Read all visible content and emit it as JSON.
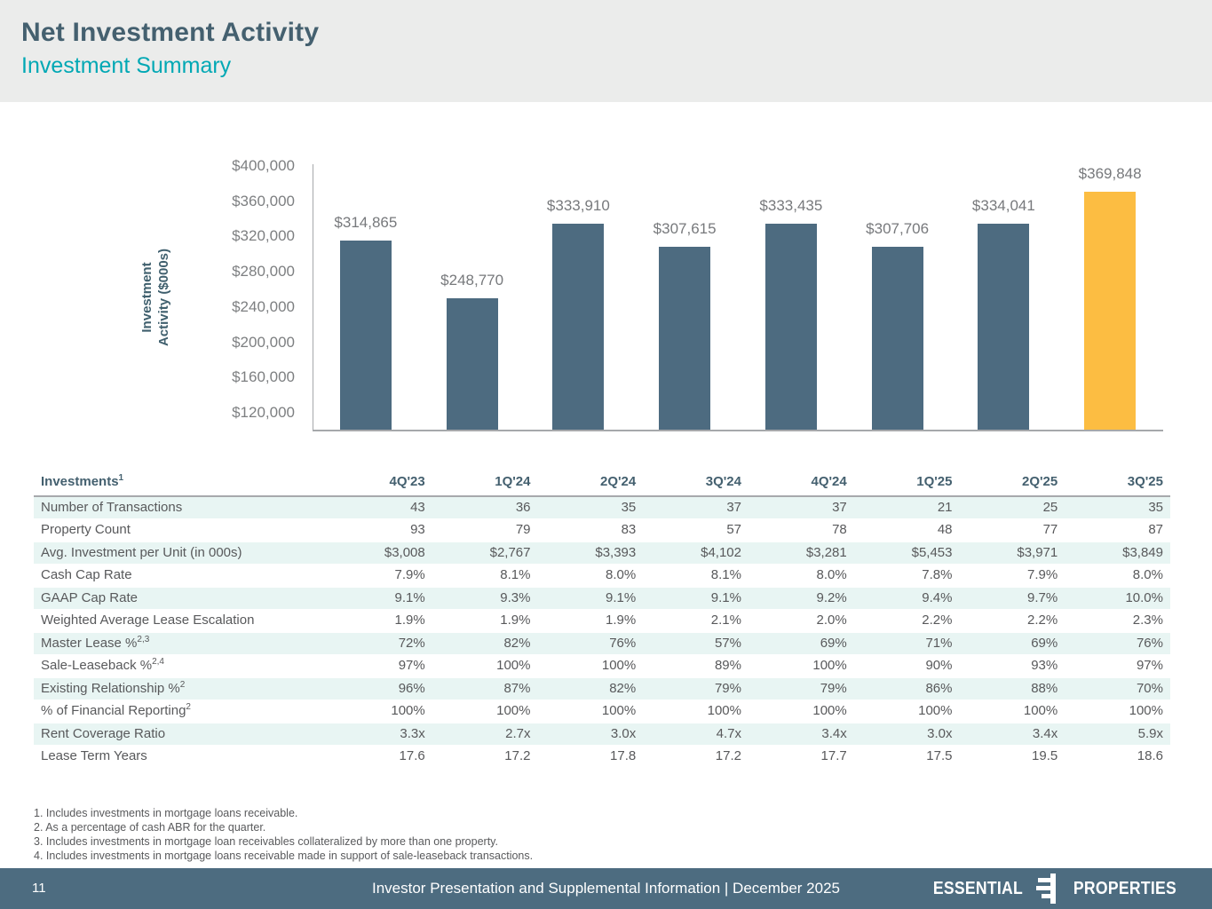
{
  "header": {
    "title": "Net Investment Activity",
    "subtitle": "Investment Summary"
  },
  "chart_data": {
    "type": "bar",
    "title": "",
    "categories": [
      "4Q'23",
      "1Q'24",
      "2Q'24",
      "3Q'24",
      "4Q'24",
      "1Q'25",
      "2Q'25",
      "3Q'25"
    ],
    "values": [
      314865,
      248770,
      333910,
      307615,
      333435,
      307706,
      334041,
      369848
    ],
    "value_labels": [
      "$314,865",
      "$248,770",
      "$333,910",
      "$307,615",
      "$333,435",
      "$307,706",
      "$334,041",
      "$369,848"
    ],
    "ylabel_lines": [
      "Investment",
      "Activity ($000s)"
    ],
    "ylabel": "Investment Activity ($000s)",
    "yticks": [
      "$400,000",
      "$360,000",
      "$320,000",
      "$280,000",
      "$240,000",
      "$200,000",
      "$160,000",
      "$120,000"
    ],
    "ylim": [
      100000,
      400000
    ],
    "grid": false,
    "legend": "none",
    "bar_color": "#4d6b80",
    "highlight_color": "#fcbd42",
    "highlight_index": 7
  },
  "table": {
    "title": {
      "label": "Investments",
      "sup": "1"
    },
    "columns": [
      "4Q'23",
      "1Q'24",
      "2Q'24",
      "3Q'24",
      "4Q'24",
      "1Q'25",
      "2Q'25",
      "3Q'25"
    ],
    "rows": [
      {
        "label": "Number of Transactions",
        "values": [
          "43",
          "36",
          "35",
          "37",
          "37",
          "21",
          "25",
          "35"
        ]
      },
      {
        "label": "Property Count",
        "values": [
          "93",
          "79",
          "83",
          "57",
          "78",
          "48",
          "77",
          "87"
        ]
      },
      {
        "label": "Avg. Investment per Unit (in 000s)",
        "values": [
          "$3,008",
          "$2,767",
          "$3,393",
          "$4,102",
          "$3,281",
          "$5,453",
          "$3,971",
          "$3,849"
        ]
      },
      {
        "label": "Cash Cap Rate",
        "values": [
          "7.9%",
          "8.1%",
          "8.0%",
          "8.1%",
          "8.0%",
          "7.8%",
          "7.9%",
          "8.0%"
        ]
      },
      {
        "label": "GAAP Cap Rate",
        "values": [
          "9.1%",
          "9.3%",
          "9.1%",
          "9.1%",
          "9.2%",
          "9.4%",
          "9.7%",
          "10.0%"
        ]
      },
      {
        "label": "Weighted Average Lease Escalation",
        "values": [
          "1.9%",
          "1.9%",
          "1.9%",
          "2.1%",
          "2.0%",
          "2.2%",
          "2.2%",
          "2.3%"
        ]
      },
      {
        "label": "Master Lease %",
        "sup": "2,3",
        "values": [
          "72%",
          "82%",
          "76%",
          "57%",
          "69%",
          "71%",
          "69%",
          "76%"
        ]
      },
      {
        "label": "Sale-Leaseback %",
        "sup": "2,4",
        "values": [
          "97%",
          "100%",
          "100%",
          "89%",
          "100%",
          "90%",
          "93%",
          "97%"
        ]
      },
      {
        "label": "Existing Relationship %",
        "sup": "2",
        "values": [
          "96%",
          "87%",
          "82%",
          "79%",
          "79%",
          "86%",
          "88%",
          "70%"
        ]
      },
      {
        "label": "% of Financial Reporting",
        "sup": "2",
        "values": [
          "100%",
          "100%",
          "100%",
          "100%",
          "100%",
          "100%",
          "100%",
          "100%"
        ]
      },
      {
        "label": "Rent Coverage Ratio",
        "values": [
          "3.3x",
          "2.7x",
          "3.0x",
          "4.7x",
          "3.4x",
          "3.0x",
          "3.4x",
          "5.9x"
        ]
      },
      {
        "label": "Lease Term Years",
        "values": [
          "17.6",
          "17.2",
          "17.8",
          "17.2",
          "17.7",
          "17.5",
          "19.5",
          "18.6"
        ]
      }
    ]
  },
  "footnotes": [
    "1. Includes investments in mortgage loans receivable.",
    "2. As a percentage of cash ABR for the quarter.",
    "3. Includes investments in mortgage loan receivables collateralized by more than one property.",
    "4. Includes investments in mortgage loans receivable made in support of sale-leaseback transactions."
  ],
  "footer": {
    "page_number": "11",
    "center_text": "Investor Presentation and Supplemental Information |  December 2025",
    "logo_left": "ESSENTIAL",
    "logo_right": "PROPERTIES"
  },
  "colors": {
    "accent_teal": "#00a8b4",
    "slate": "#4d6b80",
    "highlight_orange": "#fcbd42",
    "header_bg": "#ebeceb",
    "row_tint": "#e8f5f3",
    "footer_bg": "#4d6c80"
  }
}
